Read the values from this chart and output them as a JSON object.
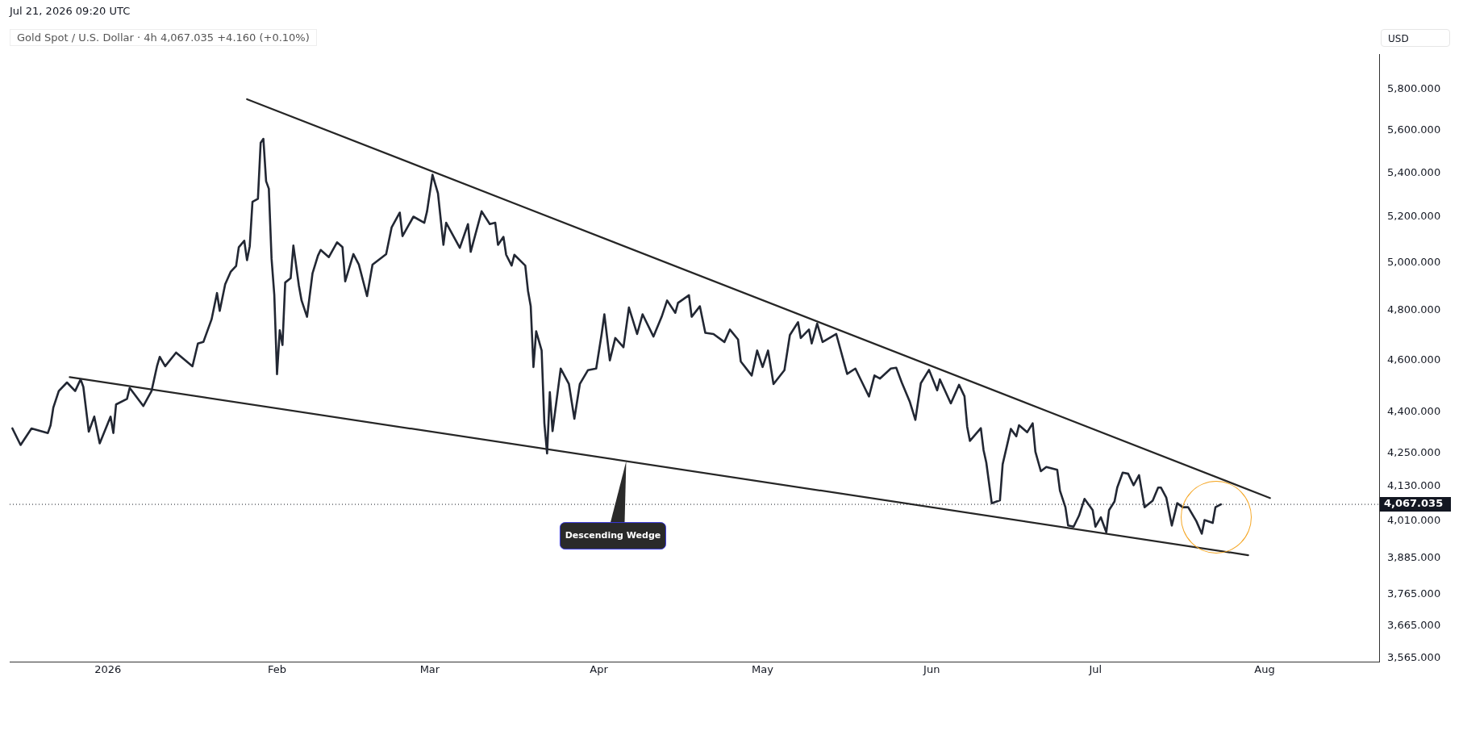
{
  "chart_data": {
    "type": "line",
    "title": "Gold Spot / U.S. Dollar · 4h",
    "subtitle": "4,067.035  +4.160 (+0.10%)",
    "ylabel": "USD",
    "annotations": [
      "Jul 21, 2026 09:20 UTC",
      {
        "text": "Descending Wedge",
        "x": "2026-04-06",
        "y": 4220
      }
    ],
    "log": "y",
    "grid": false,
    "xlim": [
      "2025-12-14",
      "2026-08-22"
    ],
    "xticks": [
      {
        "value": "2026-01-01",
        "label": "2026"
      },
      {
        "value": "2026-02-01",
        "label": "Feb"
      },
      {
        "value": "2026-03-01",
        "label": "Mar"
      },
      {
        "value": "2026-04-01",
        "label": "Apr"
      },
      {
        "value": "2026-05-01",
        "label": "May"
      },
      {
        "value": "2026-06-01",
        "label": "Jun"
      },
      {
        "value": "2026-07-01",
        "label": "Jul"
      },
      {
        "value": "2026-08-01",
        "label": "Aug"
      }
    ],
    "ylim": [
      3555,
      5975
    ],
    "yticks": [
      {
        "value": 3565,
        "label": "3,565.000"
      },
      {
        "value": 3665,
        "label": "3,665.000"
      },
      {
        "value": 3765,
        "label": "3,765.000"
      },
      {
        "value": 3885,
        "label": "3,885.000"
      },
      {
        "value": 4010,
        "label": "4,010.000"
      },
      {
        "value": 4130,
        "label": "4,130.000"
      },
      {
        "value": 4250,
        "label": "4,250.000"
      },
      {
        "value": 4400,
        "label": "4,400.000"
      },
      {
        "value": 4600,
        "label": "4,600.000"
      },
      {
        "value": 4800,
        "label": "4,800.000"
      },
      {
        "value": 5000,
        "label": "5,000.000"
      },
      {
        "value": 5200,
        "label": "5,200.000"
      },
      {
        "value": 5400,
        "label": "5,400.000"
      },
      {
        "value": 5600,
        "label": "5,600.000"
      },
      {
        "value": 5800,
        "label": "5,800.000"
      }
    ],
    "ref_lines": [
      {
        "axis": "y",
        "value": 4067.035,
        "label": "4,067.035",
        "line_style": "dotted",
        "color": "#131722"
      }
    ],
    "series": [
      {
        "color": "#222733",
        "x": [
          "2025-12-14T12:00",
          "2025-12-16",
          "2025-12-18",
          "2025-12-21",
          "2025-12-21T12:00",
          "2025-12-22",
          "2025-12-23",
          "2025-12-24T12:00",
          "2025-12-26",
          "2025-12-27",
          "2025-12-27T12:00",
          "2025-12-28T12:00",
          "2025-12-29T12:00",
          "2025-12-30T12:00",
          "2026-01-01T12:00",
          "2026-01-02",
          "2026-01-02T12:00",
          "2026-01-04T12:00",
          "2026-01-05",
          "2026-01-07T12:00",
          "2026-01-09",
          "2026-01-10",
          "2026-01-10T12:00",
          "2026-01-11T12:00",
          "2026-01-13T12:00",
          "2026-01-16T12:00",
          "2026-01-17T12:00",
          "2026-01-18T12:00",
          "2026-01-20",
          "2026-01-21",
          "2026-01-21T12:00",
          "2026-01-22T12:00",
          "2026-01-23T12:00",
          "2026-01-24T12:00",
          "2026-01-25",
          "2026-01-26",
          "2026-01-26T12:00",
          "2026-01-27",
          "2026-01-27T12:00",
          "2026-01-28T12:00",
          "2026-01-29",
          "2026-01-29T12:00",
          "2026-01-30",
          "2026-01-30T12:00",
          "2026-01-31",
          "2026-01-31T12:00",
          "2026-02-01",
          "2026-02-01T12:00",
          "2026-02-02",
          "2026-02-02T12:00",
          "2026-02-03T12:00",
          "2026-02-04",
          "2026-02-05",
          "2026-02-05T12:00",
          "2026-02-06T12:00",
          "2026-02-07T12:00",
          "2026-02-08T12:00",
          "2026-02-09",
          "2026-02-10T12:00",
          "2026-02-12",
          "2026-02-13",
          "2026-02-13T12:00",
          "2026-02-15",
          "2026-02-16",
          "2026-02-17T12:00",
          "2026-02-18T12:00",
          "2026-02-21",
          "2026-02-22",
          "2026-02-23T12:00",
          "2026-02-24",
          "2026-02-26",
          "2026-02-28",
          "2026-02-28T12:00",
          "2026-03-01T12:00",
          "2026-03-02T12:00",
          "2026-03-03T12:00",
          "2026-03-04",
          "2026-03-06T12:00",
          "2026-03-08",
          "2026-03-08T12:00",
          "2026-03-10T12:00",
          "2026-03-12",
          "2026-03-13",
          "2026-03-13T12:00",
          "2026-03-14T12:00",
          "2026-03-15",
          "2026-03-16",
          "2026-03-16T12:00",
          "2026-03-18T12:00",
          "2026-03-19",
          "2026-03-19T12:00",
          "2026-03-20",
          "2026-03-20T12:00",
          "2026-03-21T12:00",
          "2026-03-22",
          "2026-03-22T12:00",
          "2026-03-23",
          "2026-03-23T12:00",
          "2026-03-24T12:00",
          "2026-03-25",
          "2026-03-26T12:00",
          "2026-03-27T12:00",
          "2026-03-28T12:00",
          "2026-03-30",
          "2026-03-31T12:00",
          "2026-04-01T12:00",
          "2026-04-02",
          "2026-04-03",
          "2026-04-04",
          "2026-04-05T12:00",
          "2026-04-06T12:00",
          "2026-04-08",
          "2026-04-09",
          "2026-04-11",
          "2026-04-12T12:00",
          "2026-04-13T12:00",
          "2026-04-15",
          "2026-04-15T12:00",
          "2026-04-17T12:00",
          "2026-04-18",
          "2026-04-19T12:00",
          "2026-04-20T12:00",
          "2026-04-22",
          "2026-04-24",
          "2026-04-25",
          "2026-04-26T12:00",
          "2026-04-27",
          "2026-04-29",
          "2026-04-30",
          "2026-05-01",
          "2026-05-02",
          "2026-05-03",
          "2026-05-05",
          "2026-05-06",
          "2026-05-07T12:00",
          "2026-05-08",
          "2026-05-09T12:00",
          "2026-05-10",
          "2026-05-11",
          "2026-05-12",
          "2026-05-14T12:00",
          "2026-05-16T12:00",
          "2026-05-18",
          "2026-05-20T12:00",
          "2026-05-21T12:00",
          "2026-05-22T12:00",
          "2026-05-24T12:00",
          "2026-05-25T12:00",
          "2026-05-26T12:00",
          "2026-05-28",
          "2026-05-29",
          "2026-05-30",
          "2026-05-31T12:00",
          "2026-06-02",
          "2026-06-02T12:00",
          "2026-06-04T12:00",
          "2026-06-06",
          "2026-06-07",
          "2026-06-07T12:00",
          "2026-06-08",
          "2026-06-10",
          "2026-06-10T12:00",
          "2026-06-11",
          "2026-06-12",
          "2026-06-13T12:00",
          "2026-06-14",
          "2026-06-15T12:00",
          "2026-06-16T12:00",
          "2026-06-17",
          "2026-06-18T12:00",
          "2026-06-19T12:00",
          "2026-06-20",
          "2026-06-21",
          "2026-06-22",
          "2026-06-24",
          "2026-06-24T12:00",
          "2026-06-25T12:00",
          "2026-06-26",
          "2026-06-27",
          "2026-06-28",
          "2026-06-29",
          "2026-06-30T12:00",
          "2026-07-01",
          "2026-07-02",
          "2026-07-03",
          "2026-07-03T12:00",
          "2026-07-04T12:00",
          "2026-07-05",
          "2026-07-06",
          "2026-07-07",
          "2026-07-08",
          "2026-07-09",
          "2026-07-10",
          "2026-07-11T12:00",
          "2026-07-12T12:00",
          "2026-07-13",
          "2026-07-14",
          "2026-07-15",
          "2026-07-16",
          "2026-07-17",
          "2026-07-18",
          "2026-07-19T12:00",
          "2026-07-20T12:00",
          "2026-07-21",
          "2026-07-22T12:00",
          "2026-07-23",
          "2026-07-24"
        ],
        "values": [
          4340,
          4279,
          4340,
          4323,
          4352,
          4418,
          4481,
          4514,
          4481,
          4526,
          4497,
          4328,
          4384,
          4285,
          4384,
          4323,
          4430,
          4451,
          4493,
          4424,
          4481,
          4577,
          4614,
          4577,
          4631,
          4577,
          4667,
          4673,
          4764,
          4873,
          4799,
          4910,
          4962,
          4987,
          5068,
          5096,
          5012,
          5072,
          5268,
          5282,
          5541,
          5560,
          5362,
          5328,
          5018,
          4866,
          4546,
          4720,
          4661,
          4917,
          4935,
          5075,
          4905,
          4842,
          4775,
          4955,
          5031,
          5056,
          5025,
          5089,
          5068,
          4922,
          5038,
          4993,
          4860,
          4993,
          5038,
          5154,
          5220,
          5116,
          5202,
          5175,
          5226,
          5392,
          5307,
          5078,
          5175,
          5065,
          5169,
          5048,
          5226,
          5169,
          5175,
          5078,
          5113,
          5035,
          4989,
          5035,
          4989,
          4882,
          4818,
          4574,
          4716,
          4639,
          4360,
          4248,
          4477,
          4330,
          4487,
          4568,
          4508,
          4376,
          4508,
          4562,
          4568,
          4705,
          4785,
          4600,
          4689,
          4652,
          4813,
          4705,
          4785,
          4695,
          4775,
          4842,
          4791,
          4832,
          4864,
          4775,
          4818,
          4710,
          4705,
          4673,
          4723,
          4683,
          4596,
          4541,
          4639,
          4574,
          4639,
          4508,
          4562,
          4701,
          4753,
          4689,
          4723,
          4667,
          4747,
          4673,
          4705,
          4547,
          4568,
          4460,
          4541,
          4529,
          4568,
          4571,
          4514,
          4439,
          4372,
          4511,
          4563,
          4484,
          4526,
          4434,
          4505,
          4461,
          4346,
          4294,
          4341,
          4260,
          4215,
          4071,
          4081,
          4209,
          4338,
          4311,
          4352,
          4326,
          4359,
          4254,
          4184,
          4199,
          4189,
          4115,
          4057,
          3994,
          3990,
          4028,
          4086,
          4047,
          3990,
          4022,
          3971,
          4047,
          4077,
          4126,
          4179,
          4175,
          4134,
          4170,
          4057,
          4080,
          4126,
          4126,
          4090,
          3994,
          4071,
          4057,
          4057,
          4009,
          3966,
          4013,
          4003,
          4057,
          4067.035
        ]
      },
      {
        "type": "line",
        "color": "#262626",
        "x": [
          "2026-01-26T12:00",
          "2026-08-02"
        ],
        "values": [
          5752,
          4089
        ]
      },
      {
        "type": "line",
        "color": "#262626",
        "x": [
          "2025-12-25",
          "2026-07-29"
        ],
        "values": [
          4535,
          3894
        ]
      }
    ]
  }
}
